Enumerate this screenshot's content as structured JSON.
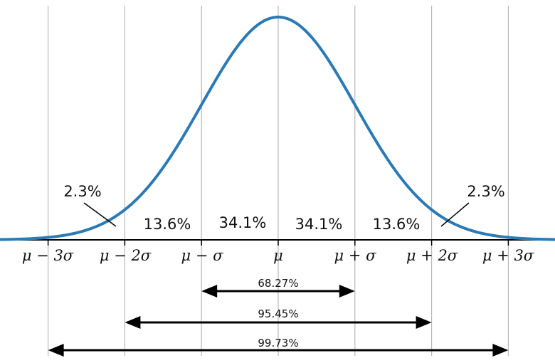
{
  "diagram": {
    "curve_color": "#2a7ab5",
    "grid_color": "#b8b8b8",
    "axis_color": "#000000",
    "axis_labels": [
      {
        "offset": -3,
        "text": "μ − 3σ"
      },
      {
        "offset": -2,
        "text": "μ − 2σ"
      },
      {
        "offset": -1,
        "text": "μ − σ"
      },
      {
        "offset": 0,
        "text": "μ"
      },
      {
        "offset": 1,
        "text": "μ + σ"
      },
      {
        "offset": 2,
        "text": "μ + 2σ"
      },
      {
        "offset": 3,
        "text": "μ + 3σ"
      }
    ],
    "segment_labels": [
      {
        "from": -2,
        "to": -1,
        "text": "13.6%"
      },
      {
        "from": -1,
        "to": 0,
        "text": "34.1%"
      },
      {
        "from": 0,
        "to": 1,
        "text": "34.1%"
      },
      {
        "from": 1,
        "to": 2,
        "text": "13.6%"
      }
    ],
    "tail_labels": [
      {
        "side": "left",
        "text": "2.3%"
      },
      {
        "side": "right",
        "text": "2.3%"
      }
    ],
    "ranges": [
      {
        "from": -1,
        "to": 1,
        "text": "68.27%"
      },
      {
        "from": -2,
        "to": 2,
        "text": "95.45%"
      },
      {
        "from": -3,
        "to": 3,
        "text": "99.73%"
      }
    ]
  }
}
